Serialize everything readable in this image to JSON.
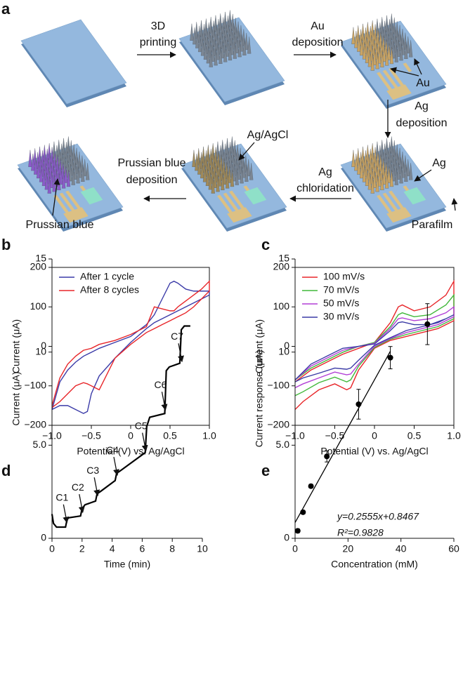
{
  "diagram": {
    "panel": "a",
    "steps": [
      {
        "lines": [
          "3D",
          "printing"
        ]
      },
      {
        "lines": [
          "Au",
          "deposition"
        ]
      },
      {
        "lines": [
          "Ag",
          "deposition"
        ]
      },
      {
        "lines": [
          "Ag",
          "chloridation"
        ]
      },
      {
        "lines": [
          "Prussian blue",
          "deposition"
        ]
      }
    ],
    "callouts": [
      "Au",
      "Ag",
      "Parafilm",
      "Ag/AgCl",
      "Prussian blue"
    ]
  },
  "chart_data": [
    {
      "panel": "b",
      "type": "line",
      "frame": "box",
      "legend": "upper left",
      "xlabel": "Potential (V) vs. Ag/AgCl",
      "ylabel": "Current (μA)",
      "xlim": [
        -1,
        1
      ],
      "ylim": [
        -200,
        200
      ],
      "xticks": [
        {
          "value": -1,
          "label": "−1.0"
        },
        {
          "value": -0.5,
          "label": "−0.5"
        },
        0,
        0.5,
        {
          "value": 1,
          "label": "1.0"
        }
      ],
      "yticks": [
        {
          "value": -200,
          "label": "−200"
        },
        {
          "value": -100,
          "label": "−100"
        },
        0,
        100,
        200
      ],
      "series": [
        {
          "name": "After 1 cycle",
          "color": "#3b3ba8",
          "x": [
            -1,
            -0.9,
            -0.8,
            -0.7,
            -0.6,
            -0.5,
            -0.4,
            -0.2,
            0,
            0.2,
            0.3,
            0.4,
            0.5,
            0.55,
            0.6,
            0.7,
            0.8,
            0.9,
            1,
            1,
            0.9,
            0.8,
            0.7,
            0.6,
            0.5,
            0.4,
            0.3,
            0.2,
            0,
            -0.2,
            -0.4,
            -0.5,
            -0.55,
            -0.6,
            -0.7,
            -0.8,
            -0.9,
            -1
          ],
          "values": [
            -160,
            -90,
            -60,
            -40,
            -25,
            -15,
            -5,
            10,
            25,
            55,
            80,
            120,
            160,
            165,
            160,
            145,
            140,
            140,
            140,
            130,
            120,
            110,
            100,
            90,
            80,
            70,
            60,
            45,
            10,
            -30,
            -75,
            -120,
            -165,
            -170,
            -160,
            -150,
            -150,
            -160
          ]
        },
        {
          "name": "After 8 cycles",
          "color": "#e8262a",
          "x": [
            -1,
            -0.9,
            -0.8,
            -0.7,
            -0.6,
            -0.5,
            -0.4,
            -0.2,
            0,
            0.2,
            0.3,
            0.4,
            0.5,
            0.55,
            0.6,
            0.7,
            0.8,
            0.9,
            1,
            1,
            0.9,
            0.8,
            0.7,
            0.6,
            0.5,
            0.4,
            0.3,
            0.2,
            0,
            -0.2,
            -0.4,
            -0.5,
            -0.55,
            -0.6,
            -0.7,
            -0.8,
            -0.9,
            -1
          ],
          "values": [
            -150,
            -80,
            -45,
            -25,
            -10,
            -5,
            5,
            15,
            30,
            50,
            100,
            95,
            90,
            90,
            100,
            115,
            130,
            145,
            165,
            140,
            120,
            100,
            85,
            75,
            65,
            55,
            45,
            35,
            5,
            -30,
            -110,
            -100,
            -95,
            -92,
            -100,
            -120,
            -140,
            -155
          ]
        }
      ]
    },
    {
      "panel": "c",
      "type": "line",
      "frame": "box",
      "legend": "upper left",
      "xlabel": "Potential (V) vs. Ag/AgCl",
      "ylabel": "Current (μA)",
      "xlim": [
        -1,
        1
      ],
      "ylim": [
        -200,
        200
      ],
      "xticks": [
        {
          "value": -1,
          "label": "−1.0"
        },
        {
          "value": -0.5,
          "label": "−0.5"
        },
        0,
        0.5,
        {
          "value": 1,
          "label": "1.0"
        }
      ],
      "yticks": [
        {
          "value": -200,
          "label": "−200"
        },
        {
          "value": -100,
          "label": "−100"
        },
        0,
        100,
        200
      ],
      "series": [
        {
          "name": "100 mV/s",
          "color": "#e8262a",
          "x": [
            -1,
            -0.8,
            -0.6,
            -0.4,
            -0.2,
            0,
            0.2,
            0.3,
            0.35,
            0.5,
            0.7,
            0.9,
            1,
            1,
            0.8,
            0.6,
            0.4,
            0.2,
            0,
            -0.2,
            -0.3,
            -0.35,
            -0.5,
            -0.7,
            -0.9,
            -1
          ],
          "values": [
            -90,
            -60,
            -40,
            -20,
            -5,
            10,
            60,
            100,
            105,
            90,
            100,
            130,
            165,
            65,
            45,
            35,
            25,
            15,
            -5,
            -60,
            -105,
            -110,
            -95,
            -110,
            -140,
            -160
          ]
        },
        {
          "name": "70 mV/s",
          "color": "#41b83a",
          "x": [
            -1,
            -0.8,
            -0.6,
            -0.4,
            -0.2,
            0,
            0.2,
            0.3,
            0.35,
            0.5,
            0.7,
            0.9,
            1,
            1,
            0.8,
            0.6,
            0.4,
            0.2,
            0,
            -0.2,
            -0.3,
            -0.35,
            -0.5,
            -0.7,
            -0.9,
            -1
          ],
          "values": [
            -85,
            -55,
            -35,
            -15,
            0,
            10,
            50,
            80,
            85,
            75,
            80,
            105,
            130,
            70,
            50,
            40,
            30,
            18,
            -3,
            -50,
            -85,
            -90,
            -78,
            -92,
            -115,
            -125
          ]
        },
        {
          "name": "50 mV/s",
          "color": "#b23fd6",
          "x": [
            -1,
            -0.8,
            -0.6,
            -0.4,
            -0.2,
            0,
            0.2,
            0.3,
            0.35,
            0.5,
            0.7,
            0.9,
            1,
            1,
            0.8,
            0.6,
            0.4,
            0.2,
            0,
            -0.2,
            -0.3,
            -0.35,
            -0.5,
            -0.7,
            -0.9,
            -1
          ],
          "values": [
            -85,
            -50,
            -30,
            -10,
            0,
            8,
            45,
            70,
            72,
            65,
            70,
            85,
            100,
            75,
            55,
            45,
            35,
            20,
            0,
            -45,
            -70,
            -72,
            -65,
            -80,
            -95,
            -105
          ]
        },
        {
          "name": "30 mV/s",
          "color": "#3a3aa6",
          "x": [
            -1,
            -0.8,
            -0.6,
            -0.4,
            -0.2,
            0,
            0.2,
            0.3,
            0.35,
            0.5,
            0.7,
            0.9,
            1,
            1,
            0.8,
            0.6,
            0.4,
            0.2,
            0,
            -0.2,
            -0.3,
            -0.35,
            -0.5,
            -0.7,
            -0.9,
            -1
          ],
          "values": [
            -85,
            -45,
            -25,
            -5,
            0,
            6,
            40,
            60,
            62,
            55,
            55,
            70,
            80,
            80,
            60,
            50,
            40,
            22,
            3,
            -35,
            -55,
            -58,
            -55,
            -68,
            -80,
            -90
          ]
        }
      ]
    },
    {
      "panel": "d",
      "type": "line",
      "frame": "axes",
      "xlabel": "Time (min)",
      "ylabel": "Current (μA)",
      "xlim": [
        0,
        10
      ],
      "ylim": [
        0,
        15
      ],
      "xticks": [
        0,
        2,
        4,
        6,
        8,
        10
      ],
      "yticks": [
        0,
        {
          "value": 5,
          "label": "5.0"
        },
        10,
        15
      ],
      "color": "#000000",
      "x": [
        0,
        0.1,
        0.3,
        0.9,
        1.0,
        1.1,
        1.9,
        2.0,
        2.2,
        2.9,
        3.0,
        3.2,
        4.2,
        4.3,
        4.5,
        6.2,
        6.3,
        6.5,
        7.5,
        7.6,
        7.8,
        8.5,
        8.6,
        8.8,
        9.2
      ],
      "values": [
        1.3,
        0.8,
        0.6,
        0.6,
        1.0,
        1.1,
        1.2,
        1.6,
        1.8,
        2.0,
        2.4,
        2.5,
        3.1,
        3.5,
        3.6,
        4.6,
        6.0,
        6.5,
        6.7,
        9.0,
        9.2,
        9.4,
        11.2,
        11.4,
        11.4
      ],
      "annotations": [
        {
          "text": "C1",
          "x": 0.95,
          "y": 0.65
        },
        {
          "text": "C2",
          "x": 2.0,
          "y": 1.2
        },
        {
          "text": "C3",
          "x": 3.0,
          "y": 2.1
        },
        {
          "text": "C4",
          "x": 4.3,
          "y": 3.2
        },
        {
          "text": "C5",
          "x": 6.2,
          "y": 4.5
        },
        {
          "text": "C6",
          "x": 7.5,
          "y": 6.7
        },
        {
          "text": "C7",
          "x": 8.6,
          "y": 9.3
        }
      ]
    },
    {
      "panel": "e",
      "type": "scatter",
      "frame": "axes",
      "xlabel": "Concentration (mM)",
      "ylabel": "Current response (μA)",
      "xlim": [
        0,
        60
      ],
      "ylim": [
        0,
        15
      ],
      "xticks": [
        0,
        20,
        40,
        60
      ],
      "yticks": [
        0,
        {
          "value": 5,
          "label": "5.0"
        },
        10,
        15
      ],
      "color": "#000000",
      "x": [
        1,
        3,
        6,
        12,
        24,
        36,
        50
      ],
      "values": [
        0.4,
        1.4,
        2.8,
        4.4,
        7.2,
        9.7,
        11.5
      ],
      "errors": [
        0.1,
        0.1,
        0.1,
        0.3,
        0.8,
        0.6,
        1.1
      ],
      "fit": {
        "slope": 0.2555,
        "intercept": 0.8467,
        "x": [
          0,
          36
        ]
      },
      "equation": "y=0.2555x+0.8467",
      "r_squared": "R²=0.9828"
    }
  ]
}
